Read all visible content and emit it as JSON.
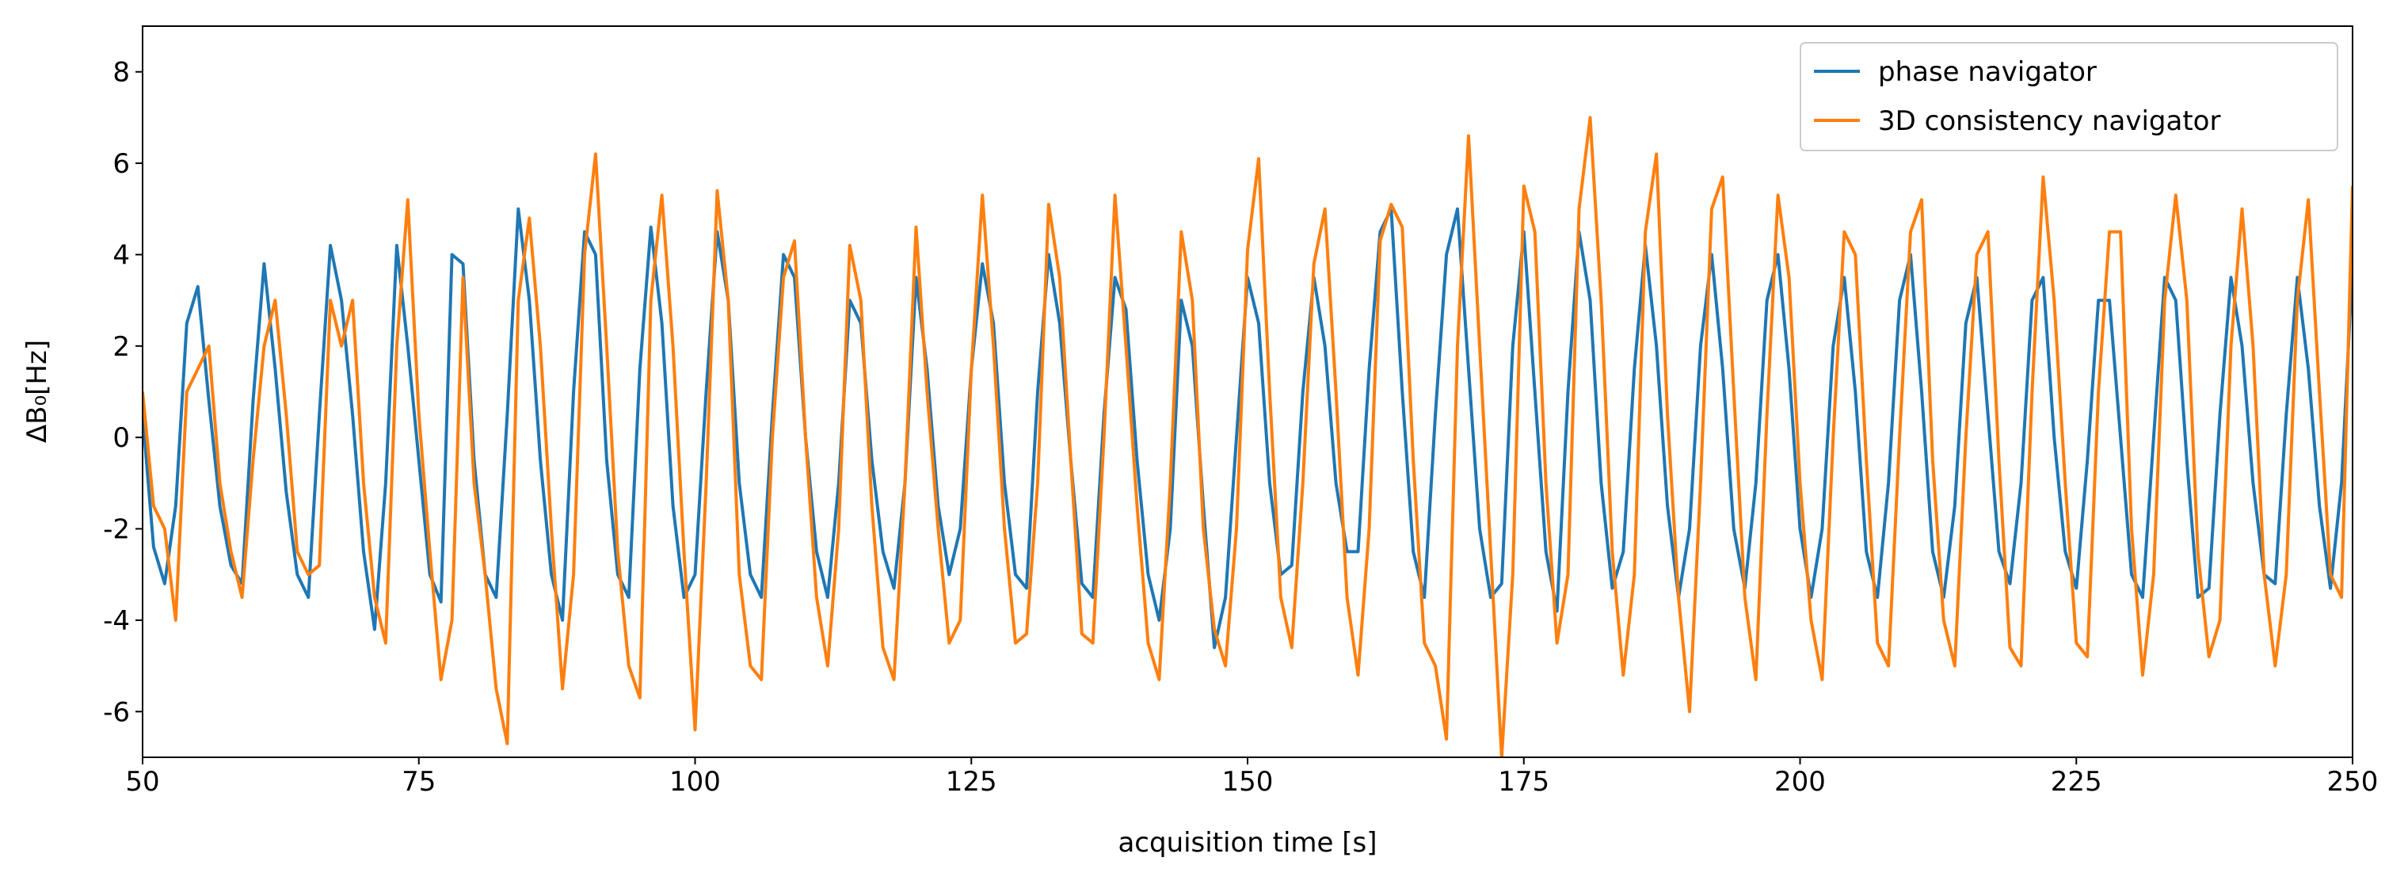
{
  "chart_data": {
    "type": "line",
    "xlabel": "acquisition time [s]",
    "ylabel": "ΔB₀[Hz]",
    "xlim": [
      50,
      250
    ],
    "ylim": [
      -7,
      9
    ],
    "xticks": [
      50,
      75,
      100,
      125,
      150,
      175,
      200,
      225,
      250
    ],
    "yticks": [
      -6,
      -4,
      -2,
      0,
      2,
      4,
      6,
      8
    ],
    "legend": "upper right",
    "grid": false,
    "x": [
      50,
      51,
      52,
      53,
      54,
      55,
      56,
      57,
      58,
      59,
      60,
      61,
      62,
      63,
      64,
      65,
      66,
      67,
      68,
      69,
      70,
      71,
      72,
      73,
      74,
      75,
      76,
      77,
      78,
      79,
      80,
      81,
      82,
      83,
      84,
      85,
      86,
      87,
      88,
      89,
      90,
      91,
      92,
      93,
      94,
      95,
      96,
      97,
      98,
      99,
      100,
      101,
      102,
      103,
      104,
      105,
      106,
      107,
      108,
      109,
      110,
      111,
      112,
      113,
      114,
      115,
      116,
      117,
      118,
      119,
      120,
      121,
      122,
      123,
      124,
      125,
      126,
      127,
      128,
      129,
      130,
      131,
      132,
      133,
      134,
      135,
      136,
      137,
      138,
      139,
      140,
      141,
      142,
      143,
      144,
      145,
      146,
      147,
      148,
      149,
      150,
      151,
      152,
      153,
      154,
      155,
      156,
      157,
      158,
      159,
      160,
      161,
      162,
      163,
      164,
      165,
      166,
      167,
      168,
      169,
      170,
      171,
      172,
      173,
      174,
      175,
      176,
      177,
      178,
      179,
      180,
      181,
      182,
      183,
      184,
      185,
      186,
      187,
      188,
      189,
      190,
      191,
      192,
      193,
      194,
      195,
      196,
      197,
      198,
      199,
      200,
      201,
      202,
      203,
      204,
      205,
      206,
      207,
      208,
      209,
      210,
      211,
      212,
      213,
      214,
      215,
      216,
      217,
      218,
      219,
      220,
      221,
      222,
      223,
      224,
      225,
      226,
      227,
      228,
      229,
      230,
      231,
      232,
      233,
      234,
      235,
      236,
      237,
      238,
      239,
      240,
      241,
      242,
      243,
      244,
      245,
      246,
      247,
      248,
      249,
      250
    ],
    "series": [
      {
        "name": "phase navigator",
        "color": "#1f77b4",
        "values": [
          0.5,
          -2.4,
          -3.2,
          -1.5,
          2.5,
          3.3,
          0.8,
          -1.5,
          -2.8,
          -3.2,
          0.8,
          3.8,
          1.5,
          -1.2,
          -3,
          -3.5,
          0.5,
          4.2,
          3,
          0.5,
          -2.5,
          -4.2,
          -1,
          4.2,
          2,
          -0.5,
          -3,
          -3.6,
          4,
          3.8,
          -0.5,
          -3,
          -3.5,
          0.5,
          5,
          3,
          -0.5,
          -3,
          -4,
          1,
          4.5,
          4,
          -0.5,
          -3,
          -3.5,
          1.5,
          4.6,
          2.5,
          -1.5,
          -3.5,
          -3,
          1,
          4.5,
          3,
          -1,
          -3,
          -3.5,
          0.5,
          4,
          3.5,
          0,
          -2.5,
          -3.5,
          -1,
          3,
          2.5,
          -0.5,
          -2.5,
          -3.3,
          -1,
          3.5,
          1.5,
          -1.5,
          -3,
          -2,
          1.5,
          3.8,
          2.5,
          -1,
          -3,
          -3.3,
          1,
          4,
          2.5,
          -0.5,
          -3.2,
          -3.5,
          0.5,
          3.5,
          2.8,
          -0.5,
          -3,
          -4,
          -2,
          3,
          2,
          -1.5,
          -4.6,
          -3.5,
          0,
          3.5,
          2.5,
          -1,
          -3,
          -2.8,
          1,
          3.5,
          2,
          -1,
          -2.5,
          -2.5,
          1.5,
          4.5,
          5,
          1,
          -2.5,
          -3.5,
          0.5,
          4,
          5,
          1.5,
          -2,
          -3.5,
          -3.2,
          2,
          4.5,
          1,
          -2.5,
          -3.8,
          1,
          4.5,
          3,
          -1,
          -3.3,
          -2.5,
          1.5,
          4.2,
          2,
          -1.5,
          -3.5,
          -2,
          2,
          4,
          1.5,
          -2,
          -3.3,
          -1,
          3,
          4,
          1.5,
          -2,
          -3.5,
          -2,
          2,
          3.5,
          1,
          -2.5,
          -3.5,
          -1,
          3,
          4,
          1,
          -2.5,
          -3.5,
          -1.5,
          2.5,
          3.5,
          0.5,
          -2.5,
          -3.2,
          -1,
          3,
          3.5,
          0,
          -2.5,
          -3.3,
          -0.5,
          3,
          3,
          0,
          -3,
          -3.5,
          0,
          3.5,
          3,
          -0.5,
          -3.5,
          -3.3,
          0.5,
          3.5,
          2,
          -1,
          -3,
          -3.2,
          0.5,
          3.5,
          1.5,
          -1.5,
          -3.3,
          -1,
          3.8
        ]
      },
      {
        "name": "3D consistency navigator",
        "color": "#ff7f0e",
        "values": [
          1,
          -1.5,
          -2,
          -4,
          1,
          1.5,
          2,
          -1,
          -2.5,
          -3.5,
          -0.5,
          2,
          3,
          0.5,
          -2.5,
          -3,
          -2.8,
          3,
          2,
          3,
          -1,
          -3.5,
          -4.5,
          2,
          5.2,
          0.5,
          -2.5,
          -5.3,
          -4,
          3.5,
          -1,
          -3,
          -5.5,
          -6.7,
          3,
          4.8,
          2,
          -2,
          -5.5,
          -3,
          4,
          6.2,
          2,
          -2.5,
          -5,
          -5.7,
          3,
          5.3,
          2,
          -2.5,
          -6.4,
          -1,
          5.4,
          3,
          -3,
          -5,
          -5.3,
          0,
          3.5,
          4.3,
          0,
          -3.5,
          -5,
          -2,
          4.2,
          3,
          -1.5,
          -4.6,
          -5.3,
          -1,
          4.6,
          1,
          -2,
          -4.5,
          -4,
          1.5,
          5.3,
          2,
          -2,
          -4.5,
          -4.3,
          -1,
          5.1,
          3.5,
          -0.5,
          -4.3,
          -4.5,
          0,
          5.3,
          2,
          -1.5,
          -4.5,
          -5.3,
          -1,
          4.5,
          3,
          -2,
          -4.2,
          -5,
          -2,
          4.1,
          6.1,
          1,
          -3.5,
          -4.6,
          -1,
          3.8,
          5,
          1,
          -3.5,
          -5.2,
          -2,
          4.3,
          5.1,
          4.6,
          -0.5,
          -4.5,
          -5,
          -6.6,
          2,
          6.6,
          2,
          -2.5,
          -7,
          -3,
          5.5,
          4.5,
          -1,
          -4.5,
          -3,
          5,
          7,
          3,
          -2.5,
          -5.2,
          -3,
          4.5,
          6.2,
          0.5,
          -3.5,
          -6,
          -1,
          5,
          5.7,
          1,
          -3.5,
          -5.3,
          0.5,
          5.3,
          3.5,
          -1,
          -4,
          -5.3,
          0,
          4.5,
          4,
          -0.5,
          -4.5,
          -5,
          0,
          4.5,
          5.2,
          -0.5,
          -4,
          -5,
          0,
          4,
          4.5,
          -0.5,
          -4.6,
          -5,
          1,
          5.7,
          3,
          -1,
          -4.5,
          -4.8,
          1,
          4.5,
          4.5,
          -2,
          -5.2,
          -3,
          3,
          5.3,
          3,
          -2.5,
          -4.8,
          -4,
          2,
          5,
          2,
          -3,
          -5,
          -3,
          3,
          5.2,
          1,
          -3,
          -3.5,
          5.5
        ]
      }
    ]
  }
}
